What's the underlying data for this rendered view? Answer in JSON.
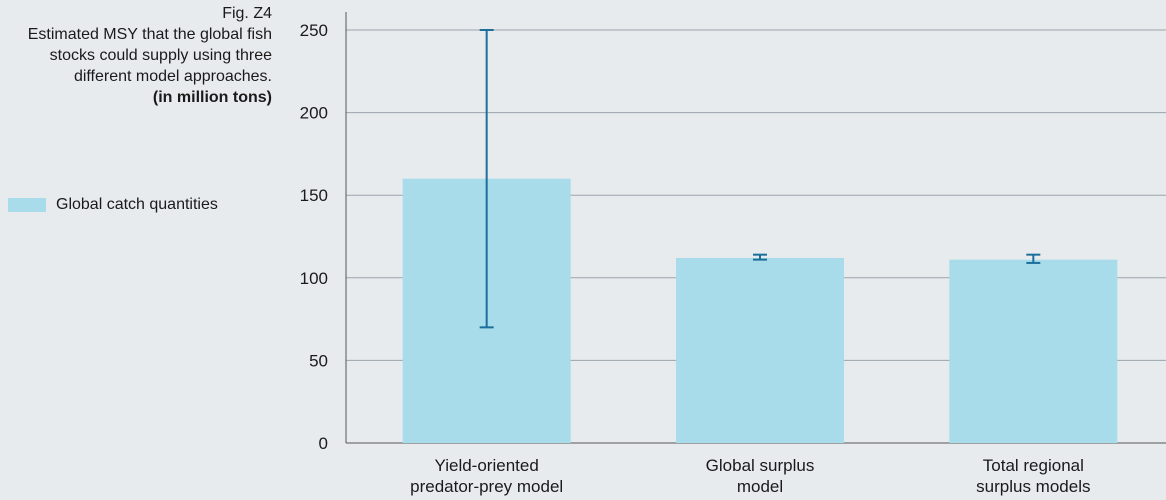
{
  "caption": {
    "figure": "Fig. Z4",
    "description": "Estimated MSY that the global fish stocks could supply using three different model approaches.",
    "unit": "(in million tons)"
  },
  "legend": {
    "label": "Global catch quantities"
  },
  "colors": {
    "bar": "#a9dceb",
    "error_bar": "#1b6f9a",
    "grid": "#9aa3ab",
    "axis": "#555555",
    "background": "#e8ebee"
  },
  "chart_data": {
    "type": "bar",
    "categories": [
      [
        "Yield-oriented",
        "predator-prey model"
      ],
      [
        "Global surplus",
        "model"
      ],
      [
        "Total regional",
        "surplus models"
      ]
    ],
    "series": [
      {
        "name": "Global catch quantities",
        "values": [
          160,
          112,
          111
        ]
      }
    ],
    "error_bars": [
      {
        "low": 70,
        "high": 250
      },
      {
        "low": 111,
        "high": 114
      },
      {
        "low": 109,
        "high": 114
      }
    ],
    "yticks": [
      0,
      50,
      100,
      150,
      200,
      250
    ],
    "ylim": [
      0,
      260
    ],
    "grid": true,
    "legend_position": "left"
  }
}
